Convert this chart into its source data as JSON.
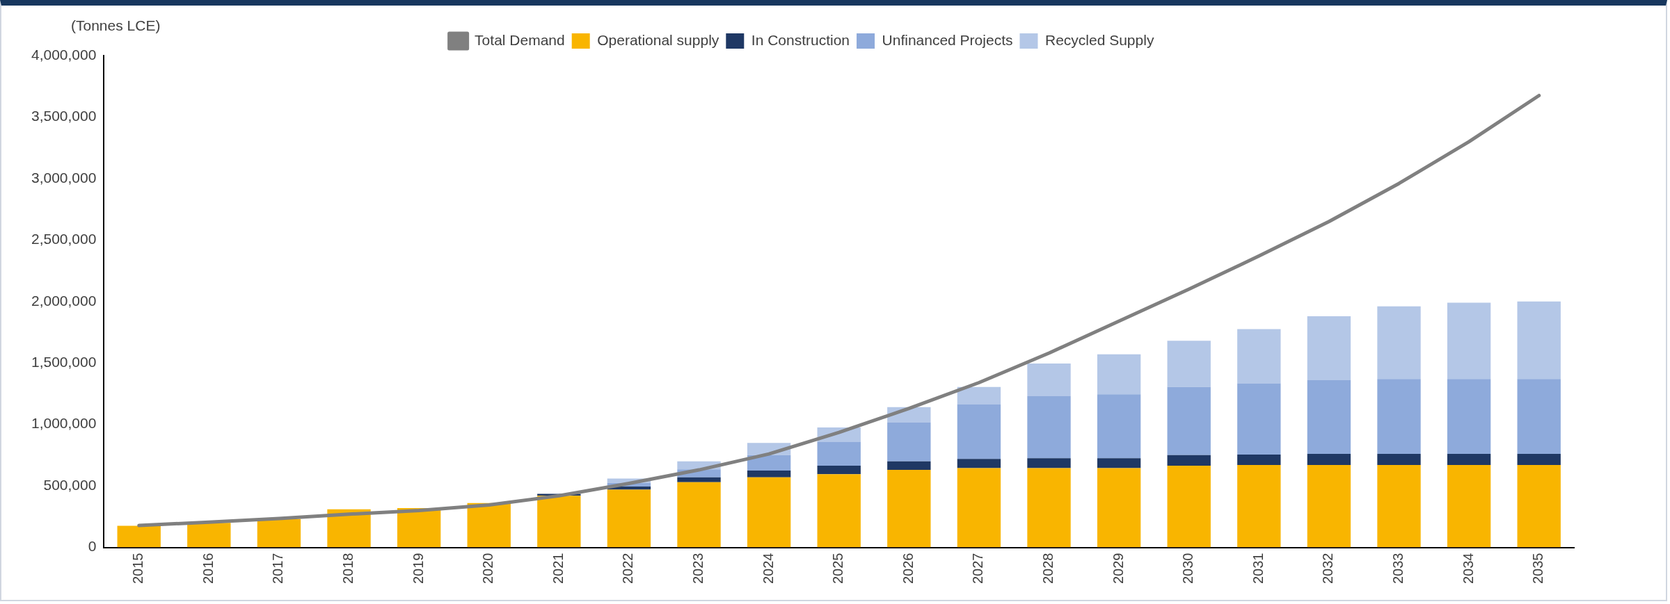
{
  "chart_data": {
    "type": "bar",
    "stacked": true,
    "ylabel": "(Tonnes LCE)",
    "categories": [
      "2015",
      "2016",
      "2017",
      "2018",
      "2019",
      "2020",
      "2021",
      "2022",
      "2023",
      "2024",
      "2025",
      "2026",
      "2027",
      "2028",
      "2029",
      "2030",
      "2031",
      "2032",
      "2033",
      "2034",
      "2035"
    ],
    "series": [
      {
        "name": "Total Demand",
        "type": "line",
        "color": "#808080",
        "values": [
          178000,
          205000,
          235000,
          270000,
          300000,
          345000,
          420000,
          520000,
          630000,
          760000,
          935000,
          1130000,
          1340000,
          1580000,
          1840000,
          2100000,
          2370000,
          2650000,
          2960000,
          3300000,
          3675000
        ]
      },
      {
        "name": "Operational supply",
        "color": "#f9b500",
        "values": [
          175000,
          200000,
          230000,
          310000,
          320000,
          360000,
          420000,
          470000,
          530000,
          570000,
          595000,
          630000,
          645000,
          645000,
          645000,
          665000,
          670000,
          670000,
          670000,
          670000,
          670000
        ]
      },
      {
        "name": "In Construction",
        "color": "#1f3864",
        "values": [
          0,
          0,
          0,
          0,
          0,
          0,
          15000,
          25000,
          40000,
          55000,
          70000,
          70000,
          75000,
          80000,
          80000,
          85000,
          85000,
          90000,
          90000,
          90000,
          90000
        ]
      },
      {
        "name": "Unfinanced Projects",
        "color": "#8eaadb",
        "values": [
          0,
          0,
          0,
          0,
          0,
          0,
          0,
          30000,
          65000,
          125000,
          195000,
          315000,
          445000,
          505000,
          520000,
          555000,
          580000,
          600000,
          610000,
          610000,
          610000
        ]
      },
      {
        "name": "Recycled Supply",
        "color": "#b4c7e7",
        "values": [
          0,
          0,
          0,
          0,
          0,
          0,
          0,
          35000,
          65000,
          100000,
          115000,
          125000,
          140000,
          265000,
          325000,
          375000,
          440000,
          520000,
          590000,
          620000,
          630000
        ]
      }
    ],
    "ylim": [
      0,
      4000000
    ],
    "yticks": [
      0,
      {
        "value": 500000,
        "label": "500,000"
      },
      {
        "value": 1000000,
        "label": "1,000,000"
      },
      {
        "value": 1500000,
        "label": "1,500,000"
      },
      {
        "value": 2000000,
        "label": "2,000,000"
      },
      {
        "value": 2500000,
        "label": "2,500,000"
      },
      {
        "value": 3000000,
        "label": "3,000,000"
      },
      {
        "value": 3500000,
        "label": "3,500,000"
      },
      {
        "value": 4000000,
        "label": "4,000,000"
      }
    ],
    "grid": false,
    "legend": "top"
  }
}
